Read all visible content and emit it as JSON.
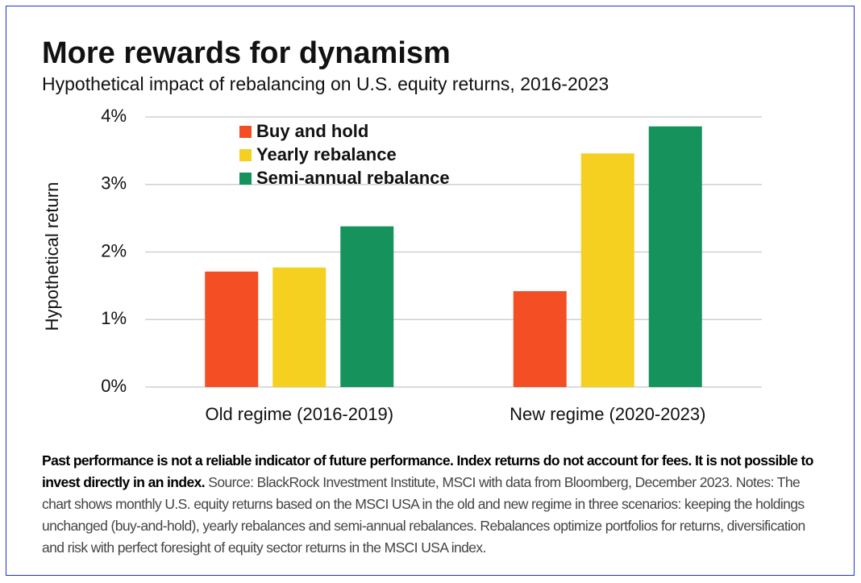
{
  "chart_data": {
    "type": "bar",
    "title": "More rewards for dynamism",
    "subtitle": "Hypothetical impact of rebalancing on U.S. equity returns, 2016-2023",
    "y_label": "Hypothetical return",
    "categories": [
      "Old regime (2016-2019)",
      "New regime (2020-2023)"
    ],
    "series": [
      {
        "name": "Buy and hold",
        "color": "#f44e24",
        "values": [
          1.71,
          1.42
        ]
      },
      {
        "name": "Yearly rebalance",
        "color": "#f5d020",
        "values": [
          1.77,
          3.46
        ]
      },
      {
        "name": "Semi-annual rebalance",
        "color": "#16925c",
        "values": [
          2.38,
          3.86
        ]
      }
    ],
    "ylim": [
      0,
      4
    ],
    "yticks": [
      {
        "value": 0,
        "label": "0%"
      },
      {
        "value": 1,
        "label": "1%"
      },
      {
        "value": 2,
        "label": "2%"
      },
      {
        "value": 3,
        "label": "3%"
      },
      {
        "value": 4,
        "label": "4%"
      }
    ],
    "grid": true,
    "legend": "top-left"
  },
  "footnote": {
    "bold": "Past performance is not a reliable indicator of future performance. Index returns do not account for fees. It is not possible to invest directly in an index.",
    "text": "Source: BlackRock Investment Institute, MSCI with data from Bloomberg, December 2023. Notes: The chart shows monthly U.S. equity returns based on the MSCI USA in the old and new regime in three scenarios: keeping the holdings unchanged (buy-and-hold), yearly rebalances and semi-annual rebalances. Rebalances optimize portfolios for returns, diversification and risk with perfect foresight of equity sector returns in the MSCI USA index."
  }
}
